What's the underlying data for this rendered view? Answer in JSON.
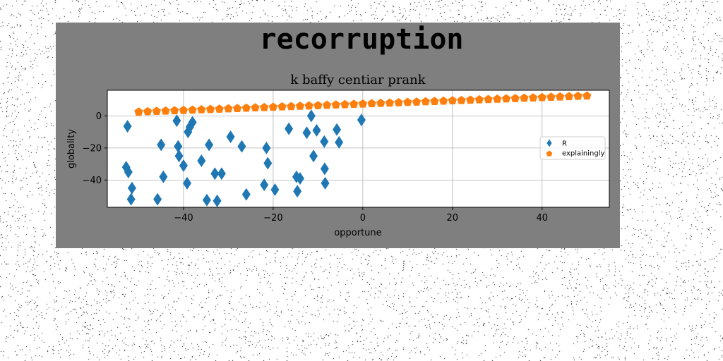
{
  "figure": {
    "suptitle": "recorruption"
  },
  "chart_data": {
    "type": "scatter",
    "title": "k baffy centiar prank",
    "xlabel": "opportune",
    "ylabel": "globality",
    "xlim": [
      -57,
      55
    ],
    "ylim": [
      -57,
      16
    ],
    "xticks": [
      -40,
      -20,
      0,
      20,
      40
    ],
    "yticks": [
      -40,
      -20,
      0
    ],
    "grid": true,
    "legend_position": "right",
    "series": [
      {
        "name": "R",
        "marker": "diamond",
        "color": "#1f77b4",
        "points": [
          [
            -52.5,
            -6.5
          ],
          [
            -52.8,
            -32
          ],
          [
            -52.3,
            -35
          ],
          [
            -51.5,
            -45
          ],
          [
            -51.7,
            -52
          ],
          [
            -45.8,
            -52
          ],
          [
            -45,
            -18
          ],
          [
            -44.5,
            -38
          ],
          [
            -41.5,
            -3
          ],
          [
            -41.2,
            -19
          ],
          [
            -41,
            -25
          ],
          [
            -40,
            -31
          ],
          [
            -39.2,
            -42
          ],
          [
            -39,
            -10
          ],
          [
            -38.6,
            -7
          ],
          [
            -38,
            -4
          ],
          [
            -36,
            -28
          ],
          [
            -34.8,
            -52.5
          ],
          [
            -34.3,
            -18
          ],
          [
            -33,
            -36
          ],
          [
            -32.5,
            -53
          ],
          [
            -31.5,
            -36
          ],
          [
            -29.5,
            -13
          ],
          [
            -27,
            -19
          ],
          [
            -26,
            -49
          ],
          [
            -22,
            -43
          ],
          [
            -21.5,
            -20
          ],
          [
            -21.2,
            -29.5
          ],
          [
            -19.6,
            -46
          ],
          [
            -16.5,
            -8
          ],
          [
            -14.8,
            -38
          ],
          [
            -14.6,
            -47
          ],
          [
            -14,
            -39
          ],
          [
            -12.5,
            -10.5
          ],
          [
            -11.5,
            0
          ],
          [
            -11,
            -25
          ],
          [
            -10.3,
            -9
          ],
          [
            -8.6,
            -16
          ],
          [
            -8.5,
            -33
          ],
          [
            -8.4,
            -42
          ],
          [
            -5.8,
            -8.5
          ],
          [
            -5.3,
            -16.5
          ],
          [
            -0.3,
            -2.5
          ]
        ]
      },
      {
        "name": "explainingly",
        "marker": "pentagon",
        "color": "#ff7f0e",
        "points": [
          [
            -50,
            2.5
          ],
          [
            -48,
            2.7
          ],
          [
            -46,
            2.9
          ],
          [
            -44,
            3.1
          ],
          [
            -42,
            3.3
          ],
          [
            -40,
            3.5
          ],
          [
            -38,
            3.7
          ],
          [
            -36,
            3.9
          ],
          [
            -34,
            4.1
          ],
          [
            -32,
            4.3
          ],
          [
            -30,
            4.5
          ],
          [
            -28,
            4.7
          ],
          [
            -26,
            4.9
          ],
          [
            -24,
            5.1
          ],
          [
            -22,
            5.3
          ],
          [
            -20,
            5.5
          ],
          [
            -18,
            5.7
          ],
          [
            -16,
            5.9
          ],
          [
            -14,
            6.1
          ],
          [
            -12,
            6.3
          ],
          [
            -10,
            6.5
          ],
          [
            -8,
            6.7
          ],
          [
            -6,
            6.9
          ],
          [
            -4,
            7.1
          ],
          [
            -2,
            7.3
          ],
          [
            0,
            7.5
          ],
          [
            2,
            7.7
          ],
          [
            4,
            7.9
          ],
          [
            6,
            8.1
          ],
          [
            8,
            8.3
          ],
          [
            10,
            8.5
          ],
          [
            12,
            8.7
          ],
          [
            14,
            8.9
          ],
          [
            16,
            9.1
          ],
          [
            18,
            9.3
          ],
          [
            20,
            9.5
          ],
          [
            22,
            9.7
          ],
          [
            24,
            9.9
          ],
          [
            26,
            10.1
          ],
          [
            28,
            10.3
          ],
          [
            30,
            10.5
          ],
          [
            32,
            10.7
          ],
          [
            34,
            10.9
          ],
          [
            36,
            11.1
          ],
          [
            38,
            11.3
          ],
          [
            40,
            11.5
          ],
          [
            42,
            11.7
          ],
          [
            44,
            11.9
          ],
          [
            46,
            12.1
          ],
          [
            48,
            12.3
          ],
          [
            50,
            12.5
          ]
        ]
      }
    ]
  }
}
